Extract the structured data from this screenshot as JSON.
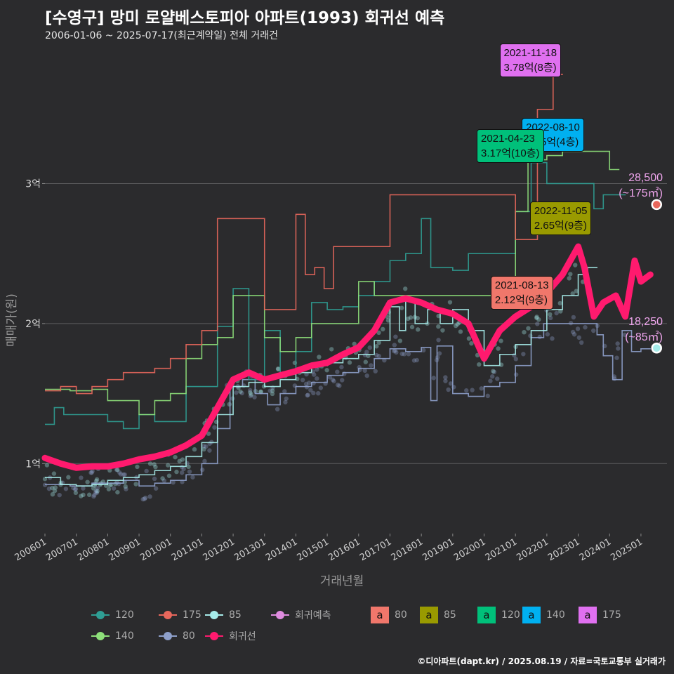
{
  "header": {
    "title": "[수영구] 망미 로얄베스토피아 아파트(1993) 회귀선 예측",
    "subtitle": "2006-01-06 ~ 2025-07-17(최근계약일) 전체 거래건"
  },
  "caption": "©디아파트(dapt.kr) / 2025.08.19 / 자료=국토교통부 실거래가",
  "colors": {
    "background": "#2b2b2d",
    "grid": "#5c5c5e",
    "s80": "#8ea0cb",
    "s85": "#a6ecea",
    "s120": "#2f9e94",
    "s140": "#8ee07a",
    "s175": "#e8675c",
    "regression": "#ff1a6e",
    "prediction": "#e08ce0",
    "box80": "#f0776b",
    "box85": "#999a00",
    "box120": "#00c07a",
    "box140": "#00b0f0",
    "box175": "#e070f0"
  },
  "chart_data": {
    "type": "line",
    "title": "[수영구] 망미 로얄베스토피아 아파트(1993) 회귀선 예측",
    "xlabel": "거래년월",
    "ylabel": "매매가(원)",
    "xlim": [
      2006.0,
      2025.83
    ],
    "ylim": [
      0.5,
      3.95
    ],
    "y_unit": "억",
    "yticks": [
      1,
      2,
      3
    ],
    "ytick_labels": [
      "1억",
      "2억",
      "3억"
    ],
    "xticks": [
      2006,
      2007,
      2008,
      2009,
      2010,
      2011,
      2012,
      2013,
      2014,
      2015,
      2016,
      2017,
      2018,
      2019,
      2020,
      2021,
      2022,
      2023,
      2024,
      2025
    ],
    "xtick_labels": [
      "200601",
      "200701",
      "200801",
      "200901",
      "201001",
      "201101",
      "201201",
      "201301",
      "201401",
      "201501",
      "201601",
      "201701",
      "201801",
      "201901",
      "202001",
      "202101",
      "202201",
      "202301",
      "202401",
      "202501"
    ],
    "grid": true,
    "legend_position": "bottom",
    "series": [
      {
        "name": "80",
        "kind": "step",
        "points": [
          [
            2006.0,
            0.85
          ],
          [
            2006.8,
            0.84
          ],
          [
            2007.5,
            0.86
          ],
          [
            2008.5,
            0.88
          ],
          [
            2009.0,
            0.84
          ],
          [
            2009.5,
            0.86
          ],
          [
            2010.0,
            0.88
          ],
          [
            2010.5,
            0.92
          ],
          [
            2011.0,
            1.0
          ],
          [
            2011.5,
            1.25
          ],
          [
            2011.9,
            1.55
          ],
          [
            2012.3,
            1.6
          ],
          [
            2012.7,
            1.5
          ],
          [
            2013.1,
            1.42
          ],
          [
            2013.5,
            1.5
          ],
          [
            2014.0,
            1.55
          ],
          [
            2014.5,
            1.58
          ],
          [
            2015.0,
            1.63
          ],
          [
            2015.5,
            1.65
          ],
          [
            2016.0,
            1.68
          ],
          [
            2016.5,
            1.75
          ],
          [
            2017.0,
            1.82
          ],
          [
            2017.5,
            1.8
          ],
          [
            2018.0,
            1.83
          ],
          [
            2018.3,
            1.45
          ],
          [
            2018.5,
            1.84
          ],
          [
            2019.0,
            1.5
          ],
          [
            2019.5,
            1.48
          ],
          [
            2020.0,
            1.55
          ],
          [
            2020.5,
            1.58
          ],
          [
            2021.0,
            1.7
          ],
          [
            2021.5,
            1.9
          ],
          [
            2021.9,
            2.0
          ],
          [
            2023.6,
            1.92
          ],
          [
            2023.8,
            1.77
          ],
          [
            2024.1,
            1.6
          ],
          [
            2024.4,
            1.95
          ],
          [
            2024.7,
            1.8
          ],
          [
            2025.0,
            1.82
          ]
        ]
      },
      {
        "name": "85",
        "kind": "step",
        "points": [
          [
            2006.0,
            0.9
          ],
          [
            2006.5,
            0.85
          ],
          [
            2007.0,
            0.84
          ],
          [
            2007.5,
            0.85
          ],
          [
            2008.0,
            0.88
          ],
          [
            2008.5,
            0.9
          ],
          [
            2009.0,
            0.92
          ],
          [
            2009.5,
            0.95
          ],
          [
            2010.0,
            0.98
          ],
          [
            2010.5,
            1.05
          ],
          [
            2011.0,
            1.15
          ],
          [
            2011.5,
            1.35
          ],
          [
            2012.0,
            1.55
          ],
          [
            2012.5,
            1.58
          ],
          [
            2013.0,
            1.55
          ],
          [
            2013.5,
            1.6
          ],
          [
            2014.0,
            1.65
          ],
          [
            2014.5,
            1.7
          ],
          [
            2015.0,
            1.72
          ],
          [
            2015.5,
            1.75
          ],
          [
            2016.0,
            1.78
          ],
          [
            2016.5,
            1.88
          ],
          [
            2017.0,
            2.12
          ],
          [
            2017.3,
            1.95
          ],
          [
            2017.5,
            2.18
          ],
          [
            2017.8,
            2.0
          ],
          [
            2018.2,
            2.1
          ],
          [
            2018.6,
            2.0
          ],
          [
            2019.0,
            2.1
          ],
          [
            2019.5,
            1.95
          ],
          [
            2020.0,
            1.7
          ],
          [
            2020.5,
            1.78
          ],
          [
            2021.0,
            1.85
          ],
          [
            2021.5,
            1.95
          ],
          [
            2022.0,
            2.1
          ],
          [
            2022.5,
            2.2
          ],
          [
            2023.0,
            2.35
          ],
          [
            2023.3,
            2.4
          ]
        ]
      },
      {
        "name": "120",
        "kind": "step",
        "points": [
          [
            2006.0,
            1.28
          ],
          [
            2006.3,
            1.4
          ],
          [
            2006.6,
            1.35
          ],
          [
            2007.0,
            1.35
          ],
          [
            2007.8,
            1.35
          ],
          [
            2008.0,
            1.3
          ],
          [
            2008.5,
            1.25
          ],
          [
            2009.0,
            1.35
          ],
          [
            2009.5,
            1.3
          ],
          [
            2010.0,
            1.3
          ],
          [
            2010.5,
            1.55
          ],
          [
            2011.0,
            1.55
          ],
          [
            2011.5,
            1.98
          ],
          [
            2012.0,
            2.25
          ],
          [
            2012.5,
            1.6
          ],
          [
            2013.0,
            1.95
          ],
          [
            2013.5,
            1.65
          ],
          [
            2014.0,
            1.8
          ],
          [
            2014.5,
            2.15
          ],
          [
            2015.0,
            2.1
          ],
          [
            2015.5,
            2.12
          ],
          [
            2016.0,
            2.2
          ],
          [
            2016.5,
            2.3
          ],
          [
            2017.0,
            2.45
          ],
          [
            2017.5,
            2.5
          ],
          [
            2018.0,
            2.75
          ],
          [
            2018.3,
            2.4
          ],
          [
            2019.0,
            2.38
          ],
          [
            2019.5,
            2.5
          ],
          [
            2020.0,
            2.5
          ],
          [
            2020.5,
            2.5
          ],
          [
            2021.0,
            2.8
          ],
          [
            2021.5,
            3.15
          ],
          [
            2022.0,
            3.0
          ],
          [
            2023.5,
            2.82
          ],
          [
            2023.8,
            2.92
          ],
          [
            2024.2,
            2.92
          ]
        ]
      },
      {
        "name": "140",
        "kind": "step",
        "points": [
          [
            2006.0,
            1.53
          ],
          [
            2006.8,
            1.52
          ],
          [
            2007.5,
            1.53
          ],
          [
            2008.0,
            1.45
          ],
          [
            2008.5,
            1.45
          ],
          [
            2009.0,
            1.35
          ],
          [
            2009.5,
            1.45
          ],
          [
            2010.0,
            1.5
          ],
          [
            2010.5,
            1.75
          ],
          [
            2011.0,
            1.85
          ],
          [
            2011.5,
            1.9
          ],
          [
            2012.0,
            2.2
          ],
          [
            2012.5,
            2.2
          ],
          [
            2013.0,
            1.9
          ],
          [
            2013.5,
            1.8
          ],
          [
            2014.0,
            1.9
          ],
          [
            2014.5,
            2.0
          ],
          [
            2015.0,
            2.0
          ],
          [
            2016.0,
            2.3
          ],
          [
            2016.5,
            2.2
          ],
          [
            2017.0,
            2.2
          ],
          [
            2021.0,
            2.8
          ],
          [
            2021.4,
            3.17
          ],
          [
            2022.0,
            3.2
          ],
          [
            2022.5,
            3.23
          ],
          [
            2024.0,
            3.1
          ]
        ]
      },
      {
        "name": "175",
        "kind": "step",
        "points": [
          [
            2006.0,
            1.52
          ],
          [
            2006.5,
            1.55
          ],
          [
            2007.0,
            1.5
          ],
          [
            2007.5,
            1.55
          ],
          [
            2008.0,
            1.6
          ],
          [
            2008.5,
            1.65
          ],
          [
            2009.0,
            1.65
          ],
          [
            2009.5,
            1.68
          ],
          [
            2010.0,
            1.75
          ],
          [
            2010.5,
            1.85
          ],
          [
            2011.0,
            1.95
          ],
          [
            2011.5,
            2.75
          ],
          [
            2012.0,
            2.75
          ],
          [
            2013.0,
            2.1
          ],
          [
            2013.5,
            2.1
          ],
          [
            2014.0,
            2.78
          ],
          [
            2014.3,
            2.35
          ],
          [
            2014.6,
            2.4
          ],
          [
            2014.9,
            2.25
          ],
          [
            2015.2,
            2.55
          ],
          [
            2017.0,
            2.92
          ],
          [
            2021.0,
            2.6
          ],
          [
            2021.7,
            3.53
          ],
          [
            2022.2,
            3.78
          ]
        ]
      },
      {
        "name": "회귀선",
        "kind": "line",
        "points": [
          [
            2006.0,
            1.04
          ],
          [
            2006.5,
            1.0
          ],
          [
            2007.0,
            0.97
          ],
          [
            2007.5,
            0.98
          ],
          [
            2008.0,
            0.98
          ],
          [
            2008.5,
            1.0
          ],
          [
            2009.0,
            1.03
          ],
          [
            2009.5,
            1.05
          ],
          [
            2010.0,
            1.08
          ],
          [
            2010.5,
            1.13
          ],
          [
            2011.0,
            1.2
          ],
          [
            2011.5,
            1.4
          ],
          [
            2012.0,
            1.6
          ],
          [
            2012.5,
            1.65
          ],
          [
            2013.0,
            1.6
          ],
          [
            2013.5,
            1.63
          ],
          [
            2014.0,
            1.66
          ],
          [
            2014.5,
            1.7
          ],
          [
            2015.0,
            1.72
          ],
          [
            2015.5,
            1.78
          ],
          [
            2016.0,
            1.83
          ],
          [
            2016.5,
            1.95
          ],
          [
            2017.0,
            2.15
          ],
          [
            2017.5,
            2.18
          ],
          [
            2018.0,
            2.15
          ],
          [
            2018.5,
            2.1
          ],
          [
            2019.0,
            2.07
          ],
          [
            2019.5,
            2.0
          ],
          [
            2020.0,
            1.75
          ],
          [
            2020.5,
            1.95
          ],
          [
            2021.0,
            2.05
          ],
          [
            2021.5,
            2.12
          ],
          [
            2022.0,
            2.22
          ],
          [
            2022.5,
            2.35
          ],
          [
            2023.0,
            2.55
          ],
          [
            2023.2,
            2.4
          ],
          [
            2023.5,
            2.05
          ],
          [
            2023.8,
            2.15
          ],
          [
            2024.2,
            2.2
          ],
          [
            2024.5,
            2.05
          ],
          [
            2024.8,
            2.45
          ],
          [
            2025.0,
            2.3
          ],
          [
            2025.3,
            2.35
          ]
        ]
      }
    ],
    "prediction_points": [
      {
        "name": "회귀예측",
        "size": "175",
        "x": 2025.5,
        "y": 2.85,
        "value_label": "28,500",
        "area_label": "(~175㎡)"
      },
      {
        "name": "회귀예측",
        "size": "85",
        "x": 2025.5,
        "y": 1.825,
        "value_label": "18,250",
        "area_label": "(~85㎡)"
      }
    ],
    "annotations": [
      {
        "date": "2021-11-18",
        "price": "3.78억(8층)",
        "size": "175",
        "x": 2021.88,
        "y": 3.78
      },
      {
        "date": "2022-08-10",
        "price": "3.25억(4층)",
        "size": "140",
        "x": 2022.61,
        "y": 3.25
      },
      {
        "date": "2021-04-23",
        "price": "3.17억(10층)",
        "size": "120",
        "x": 2021.31,
        "y": 3.17
      },
      {
        "date": "2022-11-05",
        "price": "2.65억(9층)",
        "size": "85",
        "x": 2022.85,
        "y": 2.65
      },
      {
        "date": "2021-08-13",
        "price": "2.12억(9층)",
        "size": "80",
        "x": 2021.62,
        "y": 2.12
      }
    ]
  },
  "legend": {
    "items": [
      {
        "label": "120",
        "key": "s120"
      },
      {
        "label": "175",
        "key": "s175"
      },
      {
        "label": "85",
        "key": "s85"
      },
      {
        "label": "회귀예측",
        "key": "prediction"
      },
      {
        "label": "140",
        "key": "s140"
      },
      {
        "label": "80",
        "key": "s80"
      },
      {
        "label": "회귀선",
        "key": "regression"
      }
    ],
    "box_letter": "a",
    "boxes": [
      {
        "label": "80",
        "key": "box80"
      },
      {
        "label": "85",
        "key": "box85"
      },
      {
        "label": "120",
        "key": "box120"
      },
      {
        "label": "140",
        "key": "box140"
      },
      {
        "label": "175",
        "key": "box175"
      }
    ]
  }
}
